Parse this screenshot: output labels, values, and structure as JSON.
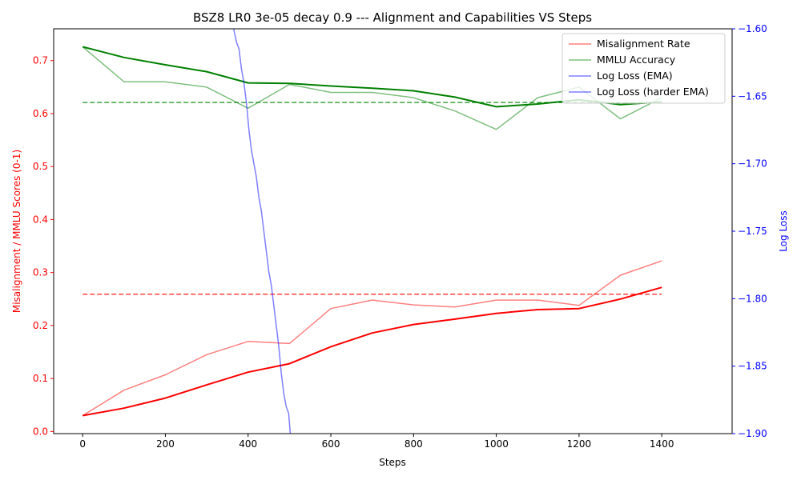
{
  "chart_data": {
    "type": "line",
    "title": "BSZ8 LR0 3e-05 decay 0.9 --- Alignment and Capabilities VS Steps",
    "xlabel": "Steps",
    "ylabel_left": "Misalignment / MMLU Scores (0-1)",
    "ylabel_right": "Log Loss",
    "xlim": [
      -70,
      1570
    ],
    "ylim_left": [
      -0.004,
      0.76
    ],
    "ylim_right": [
      -1.9,
      -1.6
    ],
    "x_ticks": [
      0,
      200,
      400,
      600,
      800,
      1000,
      1200,
      1400
    ],
    "y_left_ticks": [
      0.0,
      0.1,
      0.2,
      0.3,
      0.4,
      0.5,
      0.6,
      0.7
    ],
    "y_right_ticks": [
      -1.9,
      -1.85,
      -1.8,
      -1.75,
      -1.7,
      -1.65,
      -1.6
    ],
    "grid": false,
    "legend_position": "top-right",
    "colors": {
      "misalignment": "#ff0000",
      "mmlu": "#008000",
      "log_loss": "#0000ff",
      "left_axis": "#ff0000",
      "right_axis": "#0000ff"
    },
    "series": [
      {
        "name": "Misalignment Rate",
        "axis": "left",
        "color": "#ff0000",
        "opacity": 0.5,
        "x": [
          0,
          100,
          200,
          300,
          400,
          500,
          600,
          700,
          800,
          900,
          1000,
          1100,
          1200,
          1300,
          1400
        ],
        "values": [
          0.03,
          0.078,
          0.107,
          0.145,
          0.17,
          0.166,
          0.232,
          0.248,
          0.239,
          0.235,
          0.248,
          0.248,
          0.238,
          0.295,
          0.322
        ]
      },
      {
        "name": "",
        "axis": "left",
        "color": "#ff0000",
        "opacity": 1,
        "width": 2,
        "x": [
          0,
          100,
          200,
          300,
          400,
          500,
          600,
          700,
          800,
          900,
          1000,
          1100,
          1200,
          1300,
          1400
        ],
        "values": [
          0.03,
          0.044,
          0.063,
          0.088,
          0.112,
          0.128,
          0.16,
          0.186,
          0.202,
          0.212,
          0.223,
          0.23,
          0.232,
          0.25,
          0.272
        ]
      },
      {
        "name": "",
        "axis": "left",
        "color": "#ff0000",
        "opacity": 0.75,
        "dashed": true,
        "x": [
          0,
          1400
        ],
        "values": [
          0.259,
          0.259
        ]
      },
      {
        "name": "MMLU Accuracy",
        "axis": "left",
        "color": "#008000",
        "opacity": 0.5,
        "x": [
          0,
          100,
          200,
          300,
          400,
          500,
          600,
          700,
          800,
          900,
          1000,
          1100,
          1200,
          1300,
          1400
        ],
        "values": [
          0.726,
          0.66,
          0.66,
          0.65,
          0.61,
          0.655,
          0.64,
          0.64,
          0.63,
          0.605,
          0.57,
          0.63,
          0.65,
          0.59,
          0.63
        ]
      },
      {
        "name": "",
        "axis": "left",
        "color": "#008000",
        "opacity": 1,
        "width": 2,
        "x": [
          0,
          100,
          200,
          300,
          400,
          500,
          600,
          700,
          800,
          900,
          1000,
          1100,
          1200,
          1300,
          1400
        ],
        "values": [
          0.726,
          0.706,
          0.692,
          0.679,
          0.658,
          0.657,
          0.652,
          0.648,
          0.643,
          0.631,
          0.613,
          0.618,
          0.626,
          0.617,
          0.622
        ]
      },
      {
        "name": "",
        "axis": "left",
        "color": "#008000",
        "opacity": 0.75,
        "dashed": true,
        "x": [
          0,
          1400
        ],
        "values": [
          0.621,
          0.621
        ]
      },
      {
        "name": "Log Loss (EMA)",
        "axis": "right",
        "color": "#0000ff",
        "opacity": 0.5,
        "x": [
          365,
          372,
          378,
          384,
          390,
          396,
          402,
          408,
          414,
          420,
          426,
          432,
          438,
          444,
          450,
          456,
          462,
          468,
          474,
          480,
          486,
          492,
          498,
          502
        ],
        "values": [
          -1.6,
          -1.61,
          -1.615,
          -1.63,
          -1.64,
          -1.655,
          -1.675,
          -1.69,
          -1.7,
          -1.71,
          -1.725,
          -1.735,
          -1.75,
          -1.765,
          -1.78,
          -1.79,
          -1.805,
          -1.82,
          -1.835,
          -1.855,
          -1.87,
          -1.88,
          -1.885,
          -1.9
        ]
      },
      {
        "name": "Log Loss (harder EMA)",
        "axis": "right",
        "color": "#0000ff",
        "opacity": 0.5,
        "x": [],
        "values": []
      }
    ]
  }
}
